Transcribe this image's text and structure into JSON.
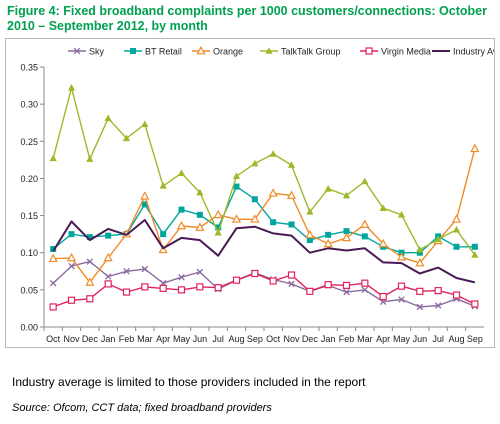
{
  "title": "Figure 4: Fixed broadband complaints per 1000 customers/connections: October 2010 – September 2012, by month",
  "note": "Industry average is limited to those providers included in the report",
  "source": "Source: Ofcom, CCT data; fixed broadband providers",
  "chart_data": {
    "type": "line",
    "title": "",
    "xlabel": "",
    "ylabel": "",
    "categories": [
      "Oct",
      "Nov",
      "Dec",
      "Jan",
      "Feb",
      "Mar",
      "Apr",
      "May",
      "Jun",
      "Jul",
      "Aug",
      "Sep",
      "Oct",
      "Nov",
      "Dec",
      "Jan",
      "Feb",
      "Mar",
      "Apr",
      "May",
      "Jun",
      "Jul",
      "Aug",
      "Sep"
    ],
    "ylim": [
      0,
      0.35
    ],
    "yticks": [
      "0.00",
      "0.05",
      "0.10",
      "0.15",
      "0.20",
      "0.25",
      "0.30",
      "0.35"
    ],
    "legend_position": "top",
    "grid": false,
    "series": [
      {
        "name": "Sky",
        "color": "#8b6b9e",
        "marker": "x",
        "values": [
          0.059,
          0.082,
          0.088,
          0.068,
          0.075,
          0.078,
          0.059,
          0.067,
          0.074,
          0.051,
          0.063,
          0.073,
          0.064,
          0.058,
          0.048,
          0.056,
          0.047,
          0.05,
          0.034,
          0.037,
          0.027,
          0.029,
          0.038,
          0.028
        ]
      },
      {
        "name": "BT Retail",
        "color": "#00a69c",
        "marker": "square",
        "values": [
          0.105,
          0.125,
          0.121,
          0.123,
          0.125,
          0.165,
          0.125,
          0.158,
          0.151,
          0.134,
          0.189,
          0.172,
          0.141,
          0.138,
          0.117,
          0.124,
          0.129,
          0.122,
          0.108,
          0.1,
          0.1,
          0.122,
          0.108,
          0.108
        ]
      },
      {
        "name": "Orange",
        "color": "#f08c28",
        "marker": "triangle-open",
        "values": [
          0.092,
          0.093,
          0.06,
          0.093,
          0.125,
          0.176,
          0.104,
          0.136,
          0.134,
          0.151,
          0.145,
          0.145,
          0.18,
          0.177,
          0.124,
          0.112,
          0.12,
          0.138,
          0.112,
          0.094,
          0.086,
          0.116,
          0.145,
          0.24
        ]
      },
      {
        "name": "TalkTalk Group",
        "color": "#9aba2a",
        "marker": "triangle",
        "values": [
          0.227,
          0.322,
          0.226,
          0.281,
          0.254,
          0.273,
          0.19,
          0.207,
          0.181,
          0.127,
          0.203,
          0.22,
          0.233,
          0.218,
          0.155,
          0.186,
          0.177,
          0.196,
          0.16,
          0.151,
          0.104,
          0.118,
          0.131,
          0.097
        ]
      },
      {
        "name": "Virgin Media",
        "color": "#e0245c",
        "marker": "square-open",
        "values": [
          0.027,
          0.036,
          0.038,
          0.058,
          0.047,
          0.054,
          0.052,
          0.05,
          0.054,
          0.053,
          0.063,
          0.072,
          0.062,
          0.07,
          0.048,
          0.057,
          0.056,
          0.059,
          0.041,
          0.055,
          0.048,
          0.049,
          0.043,
          0.031
        ]
      },
      {
        "name": "Industry Average",
        "color": "#4a1a55",
        "marker": "none",
        "values": [
          0.102,
          0.142,
          0.117,
          0.132,
          0.124,
          0.144,
          0.106,
          0.12,
          0.117,
          0.096,
          0.133,
          0.135,
          0.126,
          0.123,
          0.1,
          0.106,
          0.103,
          0.106,
          0.087,
          0.086,
          0.072,
          0.08,
          0.066,
          0.06
        ]
      }
    ]
  }
}
